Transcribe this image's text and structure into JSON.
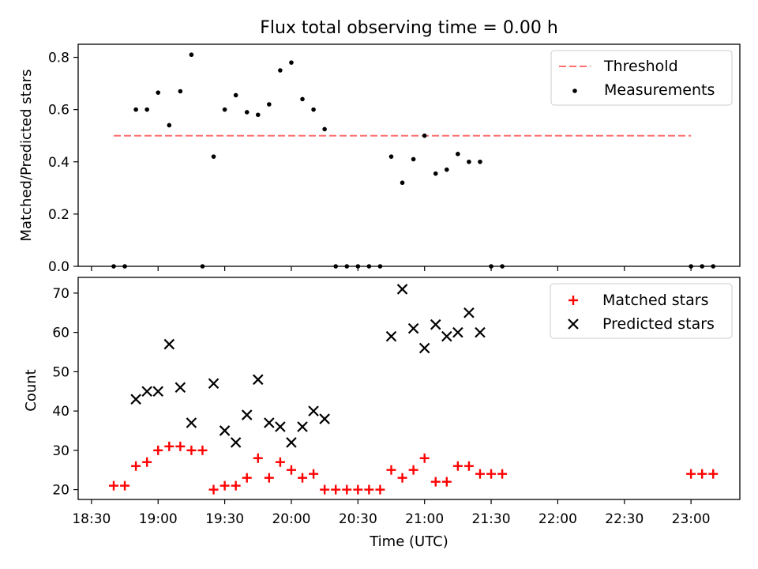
{
  "chart_data": [
    {
      "type": "scatter",
      "title": "Flux total observing time = 0.00 h",
      "xlabel": "",
      "ylabel": "Matched/Predicted stars",
      "xlim": [
        "18:24",
        "23:22"
      ],
      "ylim": [
        0,
        0.85
      ],
      "yticks": [
        "0.0",
        "0.2",
        "0.4",
        "0.6",
        "0.8"
      ],
      "legend": {
        "placement": "top-right",
        "entries": [
          "Threshold",
          "Measurements"
        ]
      },
      "threshold": {
        "name": "Threshold",
        "value": 0.5,
        "x": [
          "18:40",
          "23:00"
        ],
        "color": "#ff6f6f",
        "style": "dashed"
      },
      "series": [
        {
          "name": "Measurements",
          "color": "#000000",
          "marker": "dot",
          "points": [
            [
              "18:40",
              0.0
            ],
            [
              "18:45",
              0.0
            ],
            [
              "18:50",
              0.6
            ],
            [
              "18:55",
              0.6
            ],
            [
              "19:00",
              0.665
            ],
            [
              "19:05",
              0.54
            ],
            [
              "19:10",
              0.67
            ],
            [
              "19:15",
              0.81
            ],
            [
              "19:20",
              0.0
            ],
            [
              "19:25",
              0.42
            ],
            [
              "19:30",
              0.6
            ],
            [
              "19:35",
              0.655
            ],
            [
              "19:40",
              0.59
            ],
            [
              "19:45",
              0.58
            ],
            [
              "19:50",
              0.62
            ],
            [
              "19:55",
              0.75
            ],
            [
              "20:00",
              0.78
            ],
            [
              "20:05",
              0.64
            ],
            [
              "20:10",
              0.6
            ],
            [
              "20:15",
              0.525
            ],
            [
              "20:20",
              0.0
            ],
            [
              "20:25",
              0.0
            ],
            [
              "20:30",
              0.0
            ],
            [
              "20:35",
              0.0
            ],
            [
              "20:40",
              0.0
            ],
            [
              "20:45",
              0.42
            ],
            [
              "20:50",
              0.32
            ],
            [
              "20:55",
              0.41
            ],
            [
              "21:00",
              0.5
            ],
            [
              "21:05",
              0.355
            ],
            [
              "21:10",
              0.37
            ],
            [
              "21:15",
              0.43
            ],
            [
              "21:20",
              0.4
            ],
            [
              "21:25",
              0.4
            ],
            [
              "21:30",
              0.0
            ],
            [
              "21:35",
              0.0
            ],
            [
              "23:00",
              0.0
            ],
            [
              "23:05",
              0.0
            ],
            [
              "23:10",
              0.0
            ]
          ]
        }
      ]
    },
    {
      "type": "scatter",
      "title": "",
      "xlabel": "Time (UTC)",
      "ylabel": "Count",
      "xlim": [
        "18:24",
        "23:22"
      ],
      "ylim": [
        17.5,
        74
      ],
      "xticks": [
        "18:30",
        "19:00",
        "19:30",
        "20:00",
        "20:30",
        "21:00",
        "21:30",
        "22:00",
        "22:30",
        "23:00"
      ],
      "yticks": [
        "20",
        "30",
        "40",
        "50",
        "60",
        "70"
      ],
      "legend": {
        "placement": "top-right",
        "entries": [
          "Matched stars",
          "Predicted stars"
        ]
      },
      "series": [
        {
          "name": "Matched stars",
          "color": "#ff0000",
          "marker": "plus",
          "points": [
            [
              "18:40",
              21
            ],
            [
              "18:45",
              21
            ],
            [
              "18:50",
              26
            ],
            [
              "18:55",
              27
            ],
            [
              "19:00",
              30
            ],
            [
              "19:05",
              31
            ],
            [
              "19:10",
              31
            ],
            [
              "19:15",
              30
            ],
            [
              "19:20",
              30
            ],
            [
              "19:25",
              20
            ],
            [
              "19:30",
              21
            ],
            [
              "19:35",
              21
            ],
            [
              "19:40",
              23
            ],
            [
              "19:45",
              28
            ],
            [
              "19:50",
              23
            ],
            [
              "19:55",
              27
            ],
            [
              "20:00",
              25
            ],
            [
              "20:05",
              23
            ],
            [
              "20:10",
              24
            ],
            [
              "20:15",
              20
            ],
            [
              "20:20",
              20
            ],
            [
              "20:25",
              20
            ],
            [
              "20:30",
              20
            ],
            [
              "20:35",
              20
            ],
            [
              "20:40",
              20
            ],
            [
              "20:45",
              25
            ],
            [
              "20:50",
              23
            ],
            [
              "20:55",
              25
            ],
            [
              "21:00",
              28
            ],
            [
              "21:05",
              22
            ],
            [
              "21:10",
              22
            ],
            [
              "21:15",
              26
            ],
            [
              "21:20",
              26
            ],
            [
              "21:25",
              24
            ],
            [
              "21:30",
              24
            ],
            [
              "21:35",
              24
            ],
            [
              "23:00",
              24
            ],
            [
              "23:05",
              24
            ],
            [
              "23:10",
              24
            ]
          ]
        },
        {
          "name": "Predicted stars",
          "color": "#000000",
          "marker": "x",
          "points": [
            [
              "18:50",
              43
            ],
            [
              "18:55",
              45
            ],
            [
              "19:00",
              45
            ],
            [
              "19:05",
              57
            ],
            [
              "19:10",
              46
            ],
            [
              "19:15",
              37
            ],
            [
              "19:25",
              47
            ],
            [
              "19:30",
              35
            ],
            [
              "19:35",
              32
            ],
            [
              "19:40",
              39
            ],
            [
              "19:45",
              48
            ],
            [
              "19:50",
              37
            ],
            [
              "19:55",
              36
            ],
            [
              "20:00",
              32
            ],
            [
              "20:05",
              36
            ],
            [
              "20:10",
              40
            ],
            [
              "20:15",
              38
            ],
            [
              "20:45",
              59
            ],
            [
              "20:50",
              71
            ],
            [
              "20:55",
              61
            ],
            [
              "21:00",
              56
            ],
            [
              "21:05",
              62
            ],
            [
              "21:10",
              59
            ],
            [
              "21:15",
              60
            ],
            [
              "21:20",
              65
            ],
            [
              "21:25",
              60
            ]
          ]
        }
      ]
    }
  ]
}
